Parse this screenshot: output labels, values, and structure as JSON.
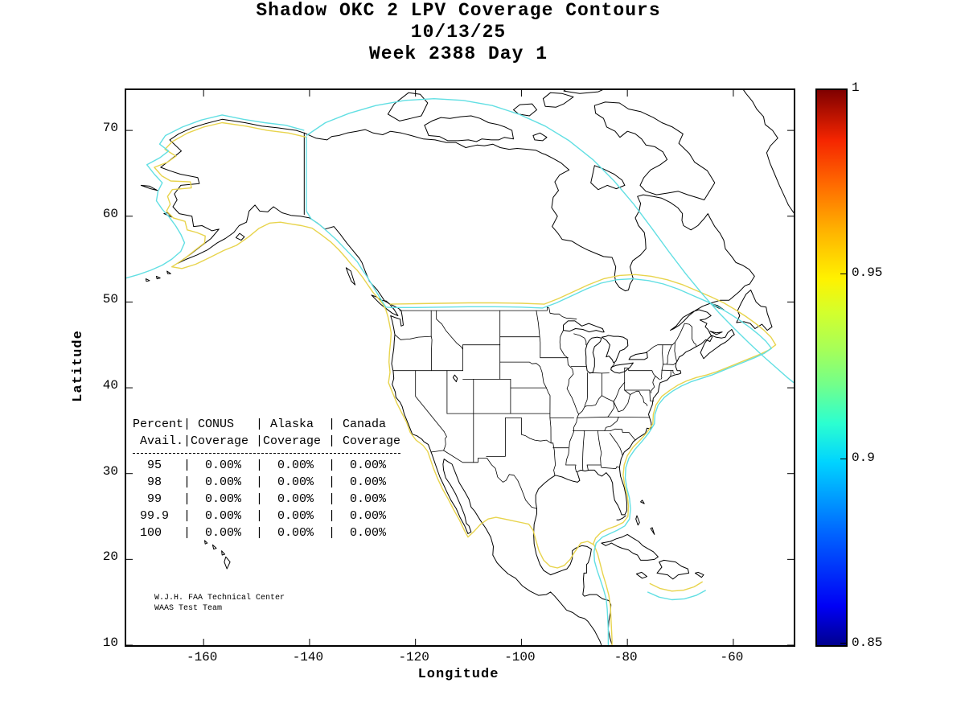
{
  "figure_title": {
    "line1": "Shadow OKC 2 LPV Coverage Contours",
    "line2": "10/13/25",
    "line3": "Week 2388 Day 1"
  },
  "axes": {
    "xlabel": "Longitude",
    "ylabel": "Latitude",
    "xticks": [
      -160,
      -140,
      -120,
      -100,
      -80,
      -60
    ],
    "yticks": [
      70,
      60,
      50,
      40,
      30,
      20,
      10
    ]
  },
  "colorbar": {
    "min": 0.85,
    "max": 1,
    "ticks": [
      1,
      0.95,
      0.9,
      0.85
    ],
    "colormap": "jet"
  },
  "colors": {
    "contour-95": "#e8d44d",
    "contour-90": "#62dfe3",
    "coastline": "#000000"
  },
  "coverage_table": {
    "header_lines": [
      "Percent| CONUS   | Alaska  | Canada",
      " Avail.|Coverage |Coverage | Coverage"
    ],
    "row_lines": [
      "  95   |  0.00%  |  0.00%  |  0.00%",
      "  98   |  0.00%  |  0.00%  |  0.00%",
      "  99   |  0.00%  |  0.00%  |  0.00%",
      " 99.9  |  0.00%  |  0.00%  |  0.00%",
      " 100   |  0.00%  |  0.00%  |  0.00%"
    ]
  },
  "credit": {
    "line1": "W.J.H. FAA Technical Center",
    "line2": "WAAS Test Team"
  },
  "chart_data": {
    "type": "heatmap",
    "subtype": "geographic availability contour map over North America basemap",
    "title": "Shadow OKC 2 LPV Coverage Contours",
    "subtitle_lines": [
      "10/13/25",
      "Week 2388 Day 1"
    ],
    "date": "10/13/25",
    "week": 2388,
    "day": 1,
    "xlabel": "Longitude",
    "ylabel": "Latitude",
    "xlim": [
      -175,
      -48.5
    ],
    "ylim": [
      10,
      75
    ],
    "xticks": [
      -160,
      -140,
      -120,
      -100,
      -80,
      -60
    ],
    "yticks": [
      10,
      20,
      30,
      40,
      50,
      60,
      70
    ],
    "grid": false,
    "legend": "none",
    "colorbar": {
      "position": "right",
      "min": 0.85,
      "max": 1,
      "ticks": [
        0.85,
        0.9,
        0.95,
        1
      ],
      "colormap": "jet"
    },
    "contours": [
      {
        "level": 0.9,
        "color": "#62dfe3",
        "color_name": "cyan"
      },
      {
        "level": 0.95,
        "color": "#e8d44d",
        "color_name": "yellow"
      }
    ],
    "availability_table": {
      "columns": [
        "Percent Avail.",
        "CONUS Coverage",
        "Alaska Coverage",
        "Canada Coverage"
      ],
      "rows": [
        {
          "percent_avail": 95,
          "conus": "0.00%",
          "alaska": "0.00%",
          "canada": "0.00%"
        },
        {
          "percent_avail": 98,
          "conus": "0.00%",
          "alaska": "0.00%",
          "canada": "0.00%"
        },
        {
          "percent_avail": 99,
          "conus": "0.00%",
          "alaska": "0.00%",
          "canada": "0.00%"
        },
        {
          "percent_avail": 99.9,
          "conus": "0.00%",
          "alaska": "0.00%",
          "canada": "0.00%"
        },
        {
          "percent_avail": 100,
          "conus": "0.00%",
          "alaska": "0.00%",
          "canada": "0.00%"
        }
      ]
    },
    "annotations": [
      "W.J.H. FAA Technical Center",
      "WAAS Test Team"
    ]
  }
}
